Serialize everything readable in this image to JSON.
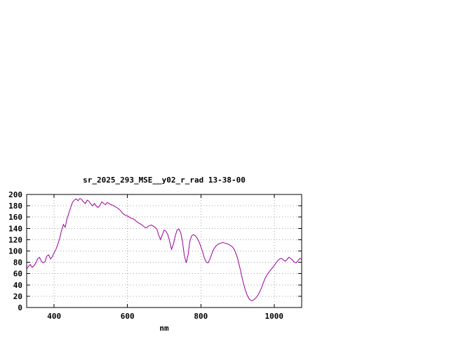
{
  "window": {
    "background": "#ffffff"
  },
  "colors": {
    "border": "#000000",
    "grid": "#a6a6a6",
    "text": "#000000",
    "accent": "#990099"
  },
  "chart_data": {
    "type": "line",
    "title": "sr_2025_293_MSE__y02_r_rad 13-38-00",
    "xlabel": "nm",
    "ylabel": "",
    "xlim": [
      325,
      1075
    ],
    "ylim": [
      0,
      200
    ],
    "xticks": [
      400,
      600,
      800,
      1000
    ],
    "yticks": [
      0,
      20,
      40,
      60,
      80,
      100,
      120,
      140,
      160,
      180,
      200
    ],
    "grid": true,
    "legend": "none",
    "series": [
      {
        "name": "sr_2025_293_MSE__y02_r_rad",
        "color": "#990099",
        "points": [
          [
            325,
            68
          ],
          [
            330,
            73
          ],
          [
            335,
            76
          ],
          [
            340,
            71
          ],
          [
            345,
            74
          ],
          [
            350,
            79
          ],
          [
            355,
            86
          ],
          [
            360,
            89
          ],
          [
            365,
            82
          ],
          [
            370,
            79
          ],
          [
            375,
            81
          ],
          [
            380,
            91
          ],
          [
            385,
            93
          ],
          [
            390,
            86
          ],
          [
            395,
            90
          ],
          [
            400,
            97
          ],
          [
            405,
            103
          ],
          [
            410,
            112
          ],
          [
            415,
            122
          ],
          [
            420,
            136
          ],
          [
            425,
            147
          ],
          [
            430,
            142
          ],
          [
            435,
            157
          ],
          [
            440,
            167
          ],
          [
            445,
            177
          ],
          [
            450,
            186
          ],
          [
            455,
            190
          ],
          [
            460,
            192
          ],
          [
            465,
            189
          ],
          [
            470,
            193
          ],
          [
            475,
            191
          ],
          [
            480,
            187
          ],
          [
            485,
            184
          ],
          [
            490,
            190
          ],
          [
            495,
            188
          ],
          [
            500,
            183
          ],
          [
            505,
            180
          ],
          [
            510,
            184
          ],
          [
            515,
            179
          ],
          [
            520,
            177
          ],
          [
            525,
            181
          ],
          [
            530,
            187
          ],
          [
            535,
            184
          ],
          [
            540,
            182
          ],
          [
            545,
            186
          ],
          [
            550,
            184
          ],
          [
            555,
            182
          ],
          [
            560,
            181
          ],
          [
            565,
            179
          ],
          [
            570,
            177
          ],
          [
            575,
            175
          ],
          [
            580,
            172
          ],
          [
            585,
            168
          ],
          [
            590,
            165
          ],
          [
            595,
            163
          ],
          [
            600,
            162
          ],
          [
            605,
            160
          ],
          [
            610,
            158
          ],
          [
            615,
            157
          ],
          [
            620,
            155
          ],
          [
            625,
            152
          ],
          [
            630,
            150
          ],
          [
            635,
            148
          ],
          [
            640,
            146
          ],
          [
            645,
            143
          ],
          [
            650,
            141
          ],
          [
            655,
            143
          ],
          [
            660,
            145
          ],
          [
            665,
            146
          ],
          [
            670,
            144
          ],
          [
            675,
            142
          ],
          [
            680,
            139
          ],
          [
            685,
            128
          ],
          [
            690,
            120
          ],
          [
            695,
            129
          ],
          [
            700,
            137
          ],
          [
            705,
            135
          ],
          [
            710,
            129
          ],
          [
            715,
            117
          ],
          [
            720,
            103
          ],
          [
            725,
            112
          ],
          [
            730,
            126
          ],
          [
            735,
            137
          ],
          [
            740,
            139
          ],
          [
            745,
            133
          ],
          [
            750,
            117
          ],
          [
            755,
            92
          ],
          [
            760,
            79
          ],
          [
            765,
            93
          ],
          [
            770,
            117
          ],
          [
            775,
            127
          ],
          [
            780,
            129
          ],
          [
            785,
            127
          ],
          [
            790,
            123
          ],
          [
            795,
            116
          ],
          [
            800,
            108
          ],
          [
            805,
            98
          ],
          [
            810,
            87
          ],
          [
            815,
            80
          ],
          [
            820,
            79
          ],
          [
            825,
            86
          ],
          [
            830,
            95
          ],
          [
            835,
            103
          ],
          [
            840,
            108
          ],
          [
            845,
            111
          ],
          [
            850,
            113
          ],
          [
            855,
            114
          ],
          [
            860,
            115
          ],
          [
            865,
            114
          ],
          [
            870,
            113
          ],
          [
            875,
            112
          ],
          [
            880,
            110
          ],
          [
            885,
            108
          ],
          [
            890,
            104
          ],
          [
            895,
            97
          ],
          [
            900,
            88
          ],
          [
            905,
            75
          ],
          [
            910,
            60
          ],
          [
            915,
            46
          ],
          [
            920,
            34
          ],
          [
            925,
            24
          ],
          [
            930,
            17
          ],
          [
            935,
            13
          ],
          [
            940,
            12
          ],
          [
            945,
            14
          ],
          [
            950,
            17
          ],
          [
            955,
            21
          ],
          [
            960,
            27
          ],
          [
            965,
            34
          ],
          [
            970,
            43
          ],
          [
            975,
            51
          ],
          [
            980,
            57
          ],
          [
            985,
            62
          ],
          [
            990,
            66
          ],
          [
            995,
            70
          ],
          [
            1000,
            74
          ],
          [
            1005,
            79
          ],
          [
            1010,
            83
          ],
          [
            1015,
            86
          ],
          [
            1020,
            87
          ],
          [
            1025,
            84
          ],
          [
            1030,
            82
          ],
          [
            1035,
            85
          ],
          [
            1040,
            89
          ],
          [
            1045,
            87
          ],
          [
            1050,
            84
          ],
          [
            1055,
            80
          ],
          [
            1060,
            79
          ],
          [
            1065,
            83
          ],
          [
            1070,
            87
          ],
          [
            1075,
            85
          ]
        ]
      }
    ]
  }
}
